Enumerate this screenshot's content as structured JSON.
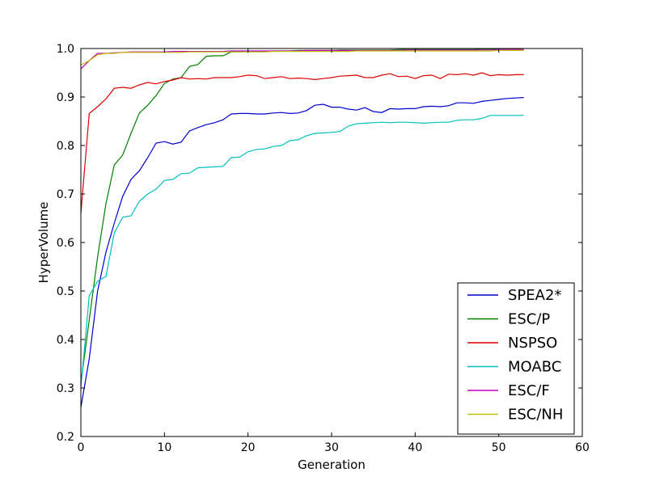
{
  "chart_data": {
    "type": "line",
    "xlabel": "Generation",
    "ylabel": "HyperVolume",
    "xlim": [
      0,
      60
    ],
    "ylim": [
      0.2,
      1.0
    ],
    "xticks": [
      0,
      10,
      20,
      30,
      40,
      50,
      60
    ],
    "yticks": [
      0.2,
      0.3,
      0.4,
      0.5,
      0.6,
      0.7,
      0.8,
      0.9,
      1.0
    ],
    "xtick_labels": [
      "0",
      "10",
      "20",
      "30",
      "40",
      "50",
      "60"
    ],
    "ytick_labels": [
      "0.2",
      "0.3",
      "0.4",
      "0.5",
      "0.6",
      "0.7",
      "0.8",
      "0.9",
      "1.0"
    ],
    "grid": false,
    "legend_position": "bottom-right",
    "x": [
      0,
      1,
      2,
      3,
      4,
      5,
      6,
      7,
      8,
      9,
      10,
      11,
      12,
      13,
      14,
      15,
      16,
      17,
      18,
      19,
      20,
      21,
      22,
      23,
      24,
      25,
      26,
      27,
      28,
      29,
      30,
      31,
      32,
      33,
      34,
      35,
      36,
      37,
      38,
      39,
      40,
      41,
      42,
      43,
      44,
      45,
      46,
      47,
      48,
      49,
      50,
      51,
      52,
      53
    ],
    "series": [
      {
        "name": "SPEA2*",
        "color": "#0000cc",
        "values": [
          0.26,
          0.36,
          0.5,
          0.58,
          0.64,
          0.695,
          0.73,
          0.748,
          0.775,
          0.805,
          0.808,
          0.803,
          0.807,
          0.83,
          0.837,
          0.843,
          0.847,
          0.853,
          0.865,
          0.866,
          0.866,
          0.865,
          0.865,
          0.867,
          0.868,
          0.866,
          0.867,
          0.872,
          0.883,
          0.885,
          0.879,
          0.879,
          0.875,
          0.873,
          0.878,
          0.87,
          0.868,
          0.876,
          0.875,
          0.876,
          0.876,
          0.88,
          0.881,
          0.88,
          0.882,
          0.888,
          0.888,
          0.887,
          0.891,
          0.893,
          0.895,
          0.897,
          0.898,
          0.899
        ]
      },
      {
        "name": "ESC/P",
        "color": "#008000",
        "values": [
          0.31,
          0.44,
          0.57,
          0.68,
          0.76,
          0.78,
          0.825,
          0.867,
          0.883,
          0.903,
          0.928,
          0.937,
          0.94,
          0.963,
          0.967,
          0.984,
          0.985,
          0.985,
          0.993,
          0.993,
          0.994,
          0.994,
          0.994,
          0.995,
          0.995,
          0.995,
          0.996,
          0.996,
          0.996,
          0.996,
          0.996,
          0.997,
          0.997,
          0.997,
          0.997,
          0.997,
          0.997,
          0.997,
          0.998,
          0.998,
          0.998,
          0.998,
          0.998,
          0.998,
          0.998,
          0.998,
          0.998,
          0.998,
          0.999,
          0.999,
          0.999,
          0.999,
          0.999,
          0.999
        ]
      },
      {
        "name": "NSPSO",
        "color": "#dd0000",
        "values": [
          0.66,
          0.866,
          0.88,
          0.896,
          0.918,
          0.92,
          0.918,
          0.925,
          0.93,
          0.927,
          0.932,
          0.935,
          0.94,
          0.937,
          0.938,
          0.937,
          0.94,
          0.94,
          0.94,
          0.942,
          0.945,
          0.944,
          0.938,
          0.94,
          0.942,
          0.938,
          0.939,
          0.938,
          0.936,
          0.938,
          0.94,
          0.943,
          0.944,
          0.945,
          0.94,
          0.94,
          0.945,
          0.948,
          0.942,
          0.943,
          0.938,
          0.944,
          0.945,
          0.938,
          0.947,
          0.946,
          0.948,
          0.945,
          0.95,
          0.944,
          0.946,
          0.945,
          0.946,
          0.946
        ]
      },
      {
        "name": "MOABC",
        "color": "#00bfbf",
        "values": [
          0.3,
          0.49,
          0.52,
          0.53,
          0.62,
          0.652,
          0.655,
          0.685,
          0.7,
          0.71,
          0.728,
          0.73,
          0.742,
          0.743,
          0.754,
          0.755,
          0.756,
          0.757,
          0.775,
          0.776,
          0.787,
          0.792,
          0.793,
          0.798,
          0.8,
          0.81,
          0.812,
          0.82,
          0.825,
          0.826,
          0.827,
          0.829,
          0.84,
          0.845,
          0.846,
          0.847,
          0.848,
          0.847,
          0.848,
          0.848,
          0.847,
          0.846,
          0.847,
          0.848,
          0.848,
          0.852,
          0.853,
          0.853,
          0.856,
          0.862,
          0.862,
          0.862,
          0.862,
          0.862
        ]
      },
      {
        "name": "ESC/F",
        "color": "#bf00bf",
        "values": [
          0.958,
          0.975,
          0.99,
          0.99,
          0.991,
          0.992,
          0.993,
          0.993,
          0.993,
          0.993,
          0.993,
          0.994,
          0.994,
          0.994,
          0.994,
          0.994,
          0.994,
          0.994,
          0.995,
          0.995,
          0.995,
          0.995,
          0.995,
          0.995,
          0.995,
          0.995,
          0.995,
          0.996,
          0.996,
          0.996,
          0.996,
          0.996,
          0.996,
          0.996,
          0.996,
          0.996,
          0.996,
          0.996,
          0.996,
          0.997,
          0.997,
          0.997,
          0.997,
          0.997,
          0.997,
          0.997,
          0.997,
          0.997,
          0.997,
          0.997,
          0.998,
          0.998,
          0.998,
          0.998
        ]
      },
      {
        "name": "ESC/NH",
        "color": "#bfbf00",
        "values": [
          0.966,
          0.975,
          0.987,
          0.99,
          0.99,
          0.992,
          0.992,
          0.992,
          0.992,
          0.992,
          0.992,
          0.992,
          0.992,
          0.993,
          0.993,
          0.993,
          0.993,
          0.993,
          0.993,
          0.993,
          0.993,
          0.993,
          0.993,
          0.994,
          0.994,
          0.994,
          0.994,
          0.994,
          0.994,
          0.994,
          0.994,
          0.994,
          0.994,
          0.995,
          0.995,
          0.995,
          0.995,
          0.995,
          0.995,
          0.995,
          0.995,
          0.995,
          0.995,
          0.995,
          0.995,
          0.995,
          0.995,
          0.995,
          0.995,
          0.995,
          0.996,
          0.996,
          0.996,
          0.996
        ]
      }
    ]
  }
}
